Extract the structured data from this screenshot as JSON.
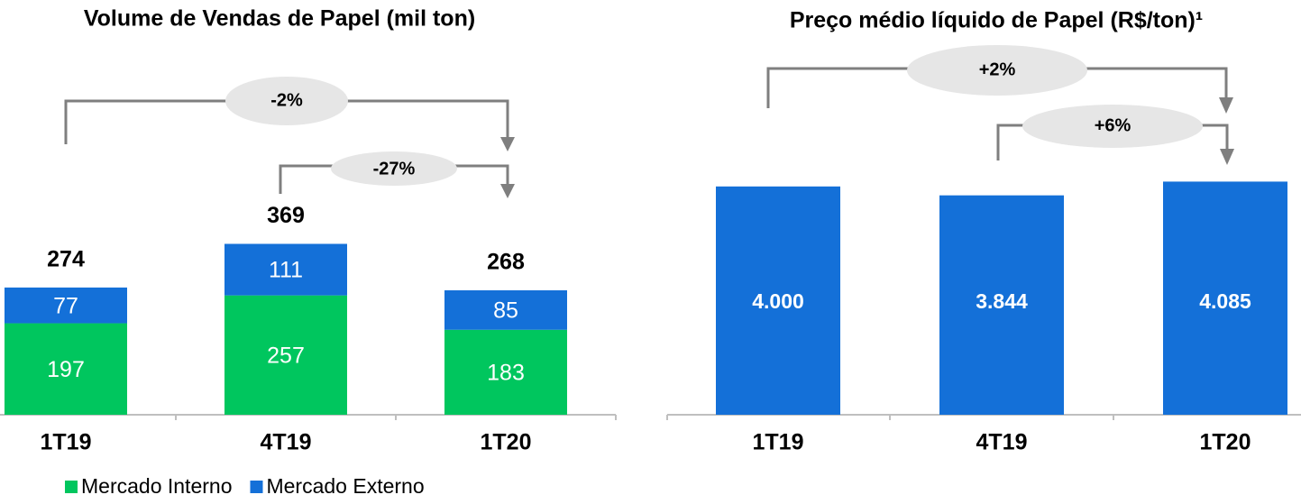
{
  "chart_data": [
    {
      "type": "stacked-bar",
      "title": "Volume de Vendas de Papel (mil ton)",
      "categories": [
        "1T19",
        "4T19",
        "1T20"
      ],
      "series": [
        {
          "name": "Mercado Interno",
          "color": "#00c65e",
          "values": [
            197,
            257,
            183
          ]
        },
        {
          "name": "Mercado Externo",
          "color": "#1470d8",
          "values": [
            77,
            111,
            85
          ]
        }
      ],
      "totals": [
        274,
        369,
        268
      ],
      "annotations": [
        "-2%",
        "-27%"
      ]
    },
    {
      "type": "bar",
      "title": "Preço médio líquido de Papel (R$/ton)¹",
      "categories": [
        "1T19",
        "4T19",
        "1T20"
      ],
      "values": [
        4000,
        3844,
        4085
      ],
      "value_labels": [
        "4.000",
        "3.844",
        "4.085"
      ],
      "color": "#1470d8",
      "annotations": [
        "+2%",
        "+6%"
      ]
    }
  ]
}
